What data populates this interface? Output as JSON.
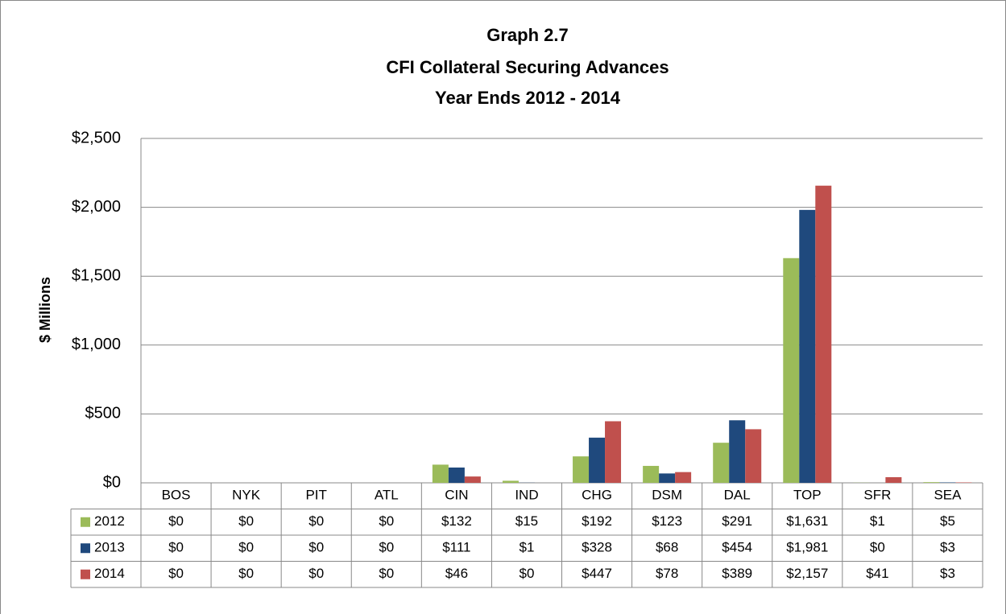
{
  "chart_data": {
    "type": "bar",
    "title": [
      "Graph 2.7",
      "CFI Collateral Securing Advances",
      "Year Ends 2012 - 2014"
    ],
    "y_label": "$ Millions",
    "categories": [
      "BOS",
      "NYK",
      "PIT",
      "ATL",
      "CIN",
      "IND",
      "CHG",
      "DSM",
      "DAL",
      "TOP",
      "SFR",
      "SEA"
    ],
    "series": [
      {
        "name": "2012",
        "color": "#9bbb59",
        "values": [
          0,
          0,
          0,
          0,
          132,
          15,
          192,
          123,
          291,
          1631,
          1,
          5
        ],
        "value_labels": [
          "$0",
          "$0",
          "$0",
          "$0",
          "$132",
          "$15",
          "$192",
          "$123",
          "$291",
          "$1,631",
          "$1",
          "$5"
        ]
      },
      {
        "name": "2013",
        "color": "#1f497d",
        "values": [
          0,
          0,
          0,
          0,
          111,
          1,
          328,
          68,
          454,
          1981,
          0,
          3
        ],
        "value_labels": [
          "$0",
          "$0",
          "$0",
          "$0",
          "$111",
          "$1",
          "$328",
          "$68",
          "$454",
          "$1,981",
          "$0",
          "$3"
        ]
      },
      {
        "name": "2014",
        "color": "#c0504d",
        "values": [
          0,
          0,
          0,
          0,
          46,
          0,
          447,
          78,
          389,
          2157,
          41,
          3
        ],
        "value_labels": [
          "$0",
          "$0",
          "$0",
          "$0",
          "$46",
          "$0",
          "$447",
          "$78",
          "$389",
          "$2,157",
          "$41",
          "$3"
        ]
      }
    ],
    "ylim": [
      0,
      2500
    ],
    "yticks": [
      {
        "value": 0,
        "label": "$0"
      },
      {
        "value": 500,
        "label": "$500"
      },
      {
        "value": 1000,
        "label": "$1,000"
      },
      {
        "value": 1500,
        "label": "$1,500"
      },
      {
        "value": 2000,
        "label": "$2,000"
      },
      {
        "value": 2500,
        "label": "$2,500"
      }
    ],
    "grid": true
  }
}
